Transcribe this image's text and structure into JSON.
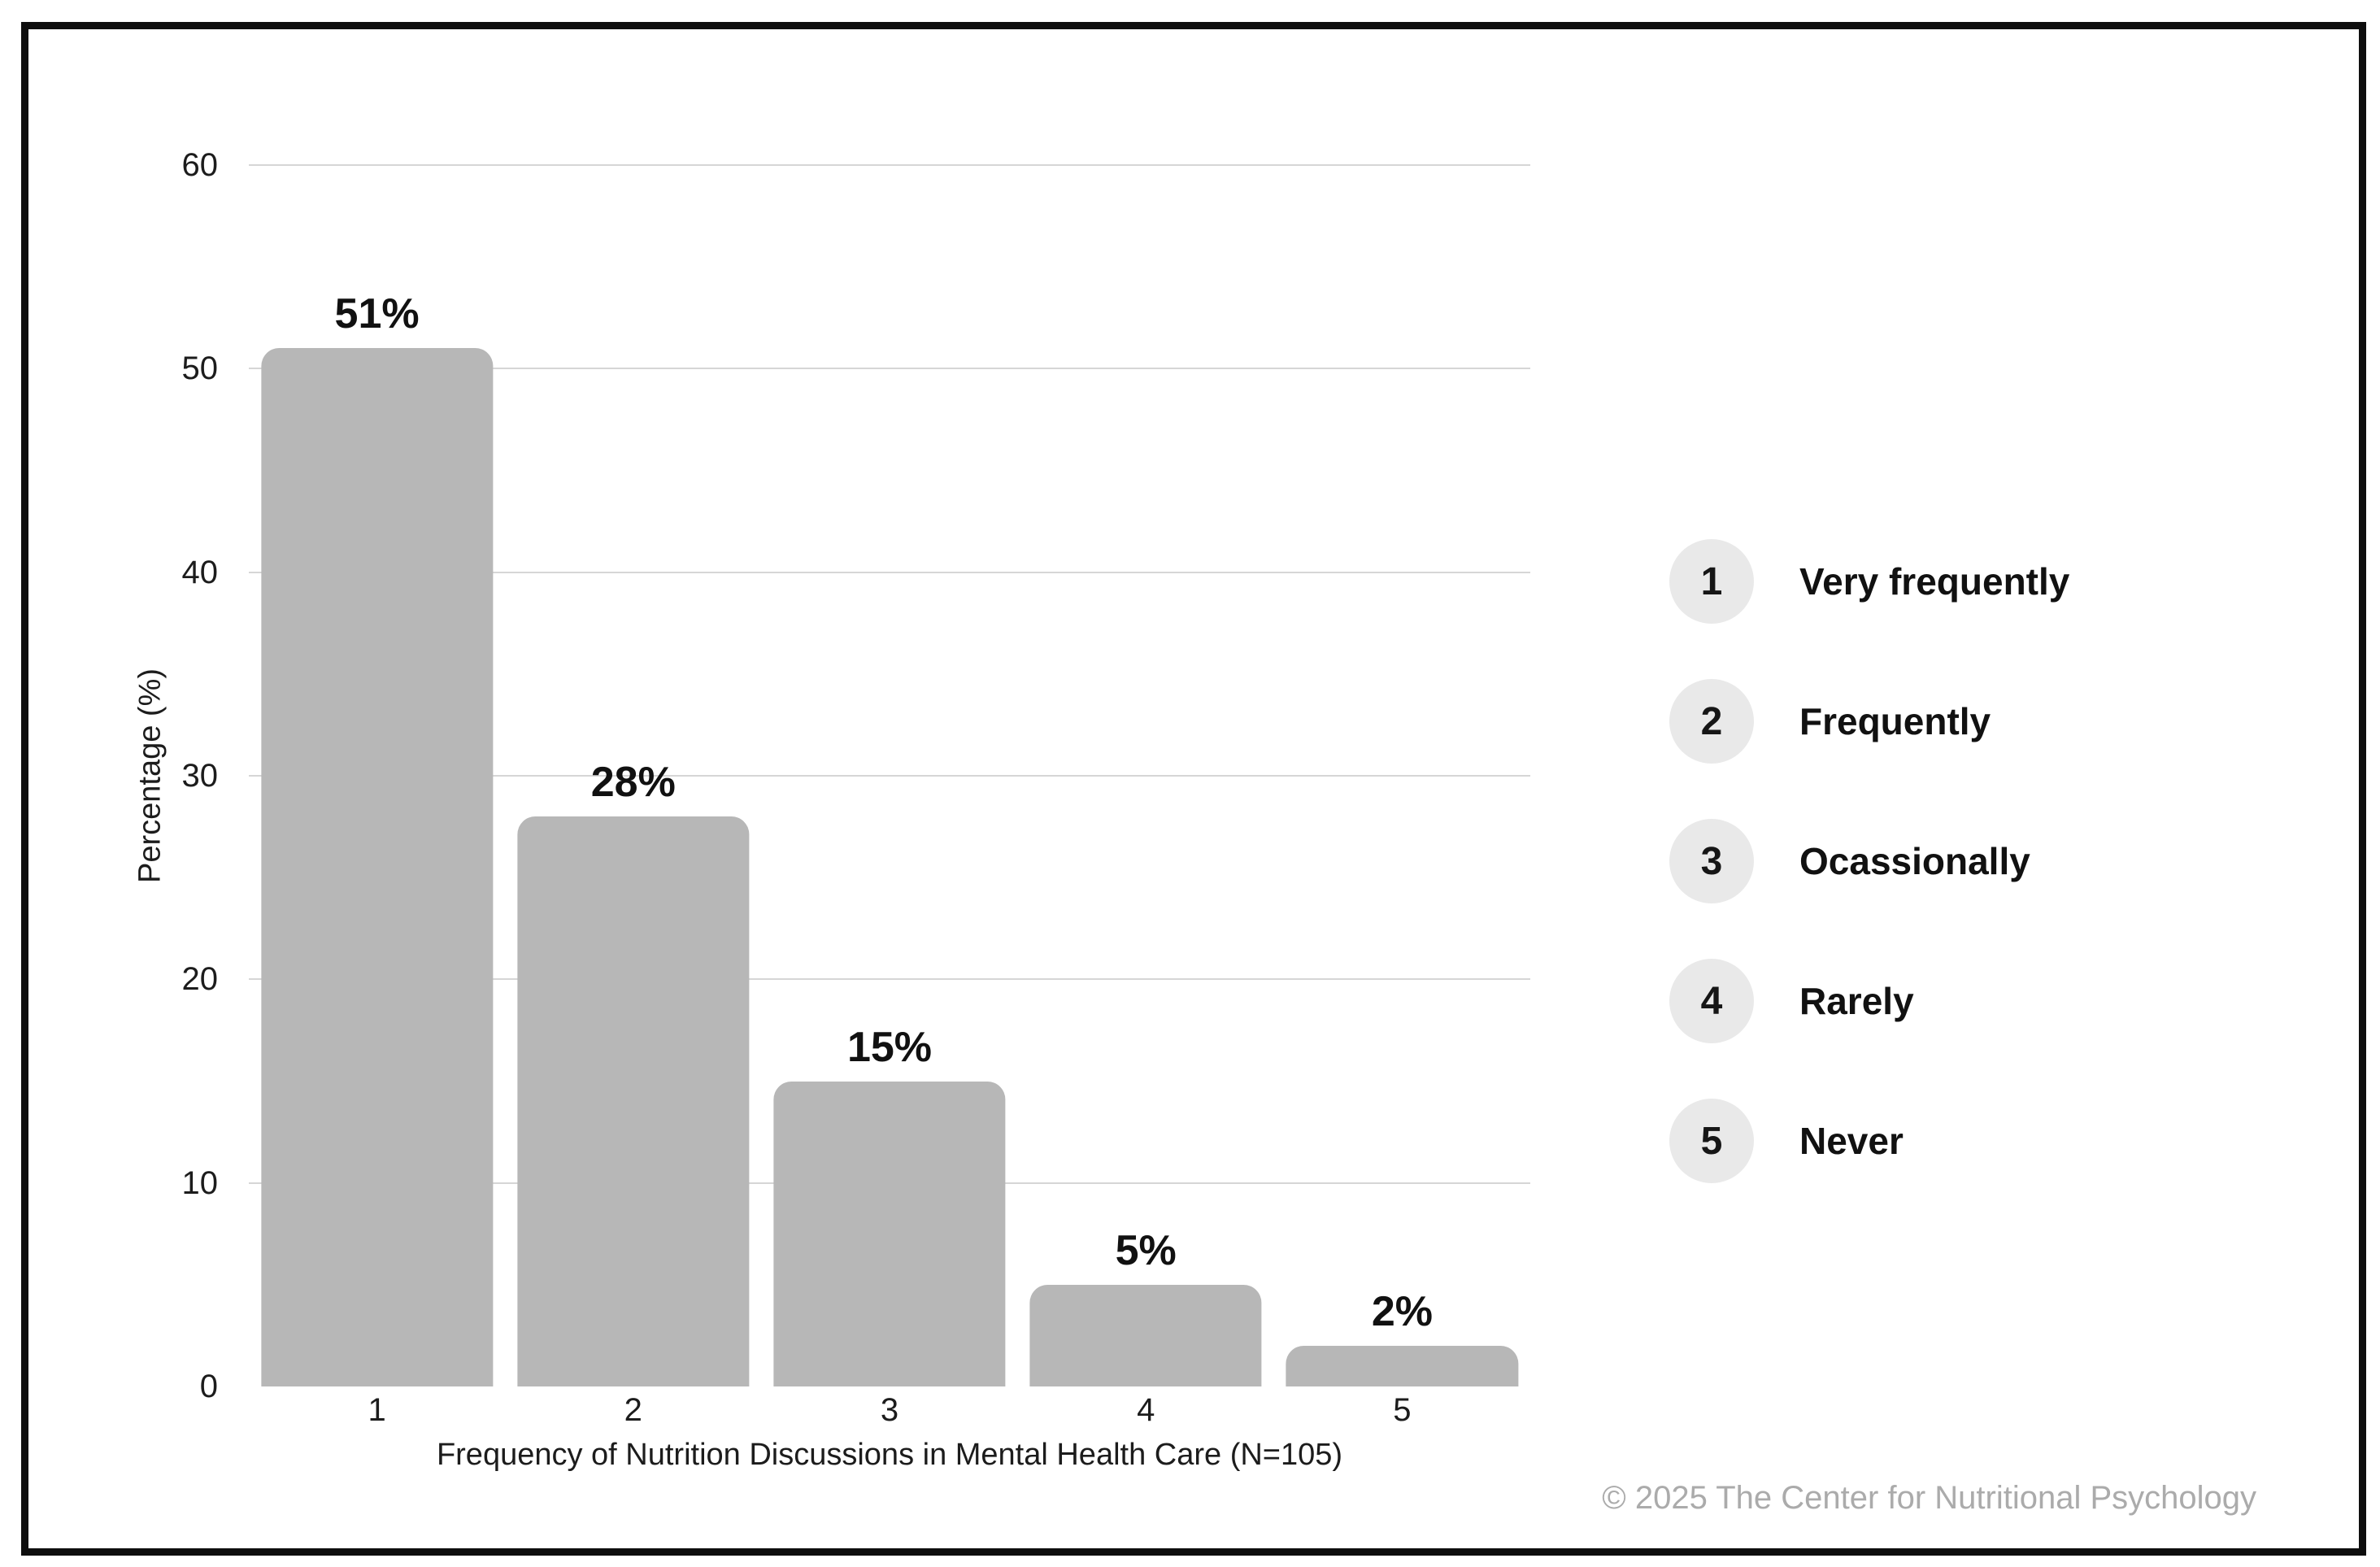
{
  "chart_data": {
    "type": "bar",
    "categories": [
      "1",
      "2",
      "3",
      "4",
      "5"
    ],
    "values": [
      51,
      28,
      15,
      5,
      2
    ],
    "value_labels": [
      "51%",
      "28%",
      "15%",
      "5%",
      "2%"
    ],
    "xlabel": "Frequency of Nutrition Discussions in Mental Health Care (N=105)",
    "ylabel": "Percentage (%)",
    "ylim": [
      0,
      60
    ],
    "yticks": [
      0,
      10,
      20,
      30,
      40,
      50,
      60
    ],
    "grid": "horizontal-only, lines at 10 through 60",
    "legend_position": "right"
  },
  "legend": {
    "items": [
      {
        "key": "1",
        "label": "Very frequently"
      },
      {
        "key": "2",
        "label": "Frequently"
      },
      {
        "key": "3",
        "label": "Ocassionally"
      },
      {
        "key": "4",
        "label": "Rarely"
      },
      {
        "key": "5",
        "label": "Never"
      }
    ]
  },
  "footer": {
    "copyright": "© 2025 The Center for Nutritional Psychology"
  },
  "colors": {
    "bar_fill": "#b7b7b7",
    "gridline": "#d6d6d6",
    "legend_badge": "#e9e9e9",
    "text": "#1a1a1a",
    "copyright_text": "#ababab",
    "frame_border": "#0e0e0e",
    "background": "#ffffff"
  }
}
